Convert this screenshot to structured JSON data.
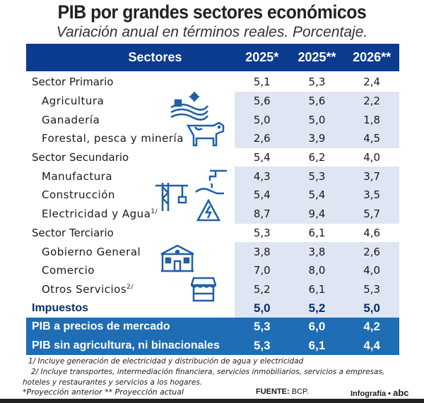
{
  "title": "PIB por grandes sectores económicos",
  "subtitle": "Variación anual en términos reales. Porcentaje.",
  "colors": {
    "header": "#0a3b8f",
    "sector_row": "#d1d1d1",
    "value_bg": "#dfe5f2",
    "total_row": "#1f6db5"
  },
  "chart_data": {
    "type": "table",
    "columns": [
      "Sectores",
      "2025*",
      "2025**",
      "2026**"
    ],
    "rows": [
      {
        "label": "Sector Primario",
        "kind": "sector",
        "values": [
          "5,1",
          "5,3",
          "2,4"
        ]
      },
      {
        "label": "Agricultura",
        "kind": "sub",
        "values": [
          "5,6",
          "5,6",
          "2,2"
        ]
      },
      {
        "label": "Ganadería",
        "kind": "sub",
        "values": [
          "5,0",
          "5,0",
          "1,8"
        ]
      },
      {
        "label": "Forestal, pesca y minería",
        "kind": "sub",
        "values": [
          "2,6",
          "3,9",
          "4,5"
        ]
      },
      {
        "label": "Sector Secundario",
        "kind": "sector",
        "values": [
          "5,4",
          "6,2",
          "4,0"
        ]
      },
      {
        "label": "Manufactura",
        "kind": "sub",
        "values": [
          "4,3",
          "5,3",
          "3,7"
        ]
      },
      {
        "label": "Construcción",
        "kind": "sub",
        "values": [
          "5,4",
          "5,4",
          "3,5"
        ]
      },
      {
        "label": "Electricidad y Agua",
        "sup": "1/",
        "kind": "sub",
        "values": [
          "8,7",
          "9,4",
          "5,7"
        ]
      },
      {
        "label": "Sector Terciario",
        "kind": "sector",
        "values": [
          "5,3",
          "6,1",
          "4,6"
        ]
      },
      {
        "label": "Gobierno General",
        "kind": "sub",
        "values": [
          "3,8",
          "3,8",
          "2,6"
        ]
      },
      {
        "label": "Comercio",
        "kind": "sub",
        "values": [
          "7,0",
          "8,0",
          "4,0"
        ]
      },
      {
        "label": "Otros Servicios",
        "sup": "2/",
        "kind": "sub",
        "values": [
          "5,2",
          "6,1",
          "5,3"
        ]
      },
      {
        "label": "Impuestos",
        "kind": "imp",
        "values": [
          "5,0",
          "5,2",
          "5,0"
        ]
      },
      {
        "label": "PIB a precios de mercado",
        "kind": "tot",
        "values": [
          "5,3",
          "6,0",
          "4,2"
        ]
      },
      {
        "label": "PIB sin agricultura, ni binacionales",
        "kind": "tot",
        "values": [
          "5,3",
          "6,1",
          "4,4"
        ]
      }
    ]
  },
  "notes": {
    "n1": "1/ Incluye generación de electricidad y distribución de agua y electricidad",
    "n2": "2/ Incluye transportes, intermediación financiera, servicios inmobiliarios, servicios a empresas,",
    "n3": "hoteles y restaurantes y servicios a los hogares.",
    "legend": "*Proyección anterior  ** Proyección actual",
    "source_label": "FUENTE:",
    "source": "BCP.",
    "credit": "Infografía •",
    "logo": "abc"
  },
  "icons": [
    "farm-icon",
    "cow-icon",
    "crane-icon",
    "water-tap-icon",
    "electricity-icon",
    "government-building-icon",
    "market-stall-icon"
  ]
}
